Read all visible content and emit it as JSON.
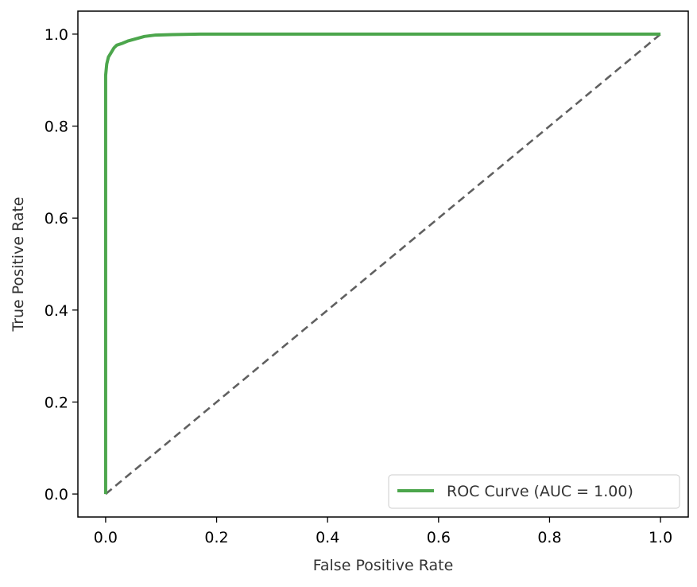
{
  "chart_data": {
    "type": "line",
    "title": "",
    "xlabel": "False Positive Rate",
    "ylabel": "True Positive Rate",
    "xlim": [
      -0.05,
      1.05
    ],
    "ylim": [
      -0.05,
      1.05
    ],
    "x_ticks": [
      "0.0",
      "0.2",
      "0.4",
      "0.6",
      "0.8",
      "1.0"
    ],
    "y_ticks": [
      "0.0",
      "0.2",
      "0.4",
      "0.6",
      "0.8",
      "1.0"
    ],
    "grid": false,
    "legend_position": "lower-right",
    "series": [
      {
        "name": "ROC Curve (AUC = 1.00)",
        "color": "#4ca64c",
        "style": "solid",
        "points": [
          [
            0.0,
            0.0
          ],
          [
            0.0,
            0.91
          ],
          [
            0.002,
            0.935
          ],
          [
            0.005,
            0.95
          ],
          [
            0.01,
            0.96
          ],
          [
            0.015,
            0.97
          ],
          [
            0.02,
            0.976
          ],
          [
            0.03,
            0.98
          ],
          [
            0.04,
            0.985
          ],
          [
            0.055,
            0.99
          ],
          [
            0.07,
            0.995
          ],
          [
            0.09,
            0.998
          ],
          [
            0.12,
            0.999
          ],
          [
            0.17,
            1.0
          ],
          [
            1.0,
            1.0
          ]
        ]
      },
      {
        "name": "",
        "color": "#606060",
        "style": "dashed",
        "points": [
          [
            0.0,
            0.0
          ],
          [
            1.0,
            1.0
          ]
        ]
      }
    ]
  }
}
